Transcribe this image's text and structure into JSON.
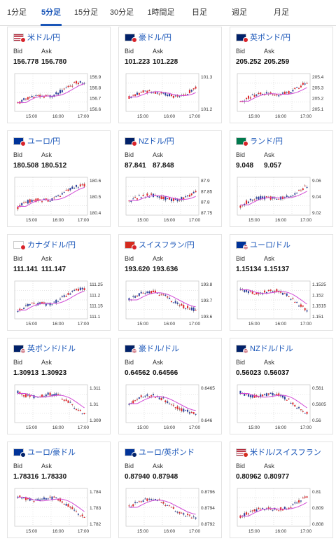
{
  "tabs": [
    "1分足",
    "5分足",
    "15分足",
    "30分足",
    "1時間足",
    "日足",
    "週足",
    "月足"
  ],
  "active_tab": 1,
  "labels": {
    "bid": "Bid",
    "ask": "Ask"
  },
  "x_ticks": [
    "15:00",
    "16:00",
    "17:00"
  ],
  "colors": {
    "up": "#e0262b",
    "down": "#2b3f9e",
    "ma": "#d24bd6",
    "accent": "#1a56b8"
  },
  "cards": [
    {
      "pair": "米ドル/円",
      "flag": "us-jp-flag",
      "bid": "156.778",
      "ask": "156.780",
      "y_ticks": [
        "156.9",
        "156.8",
        "156.7",
        "156.6"
      ],
      "trend": "up1"
    },
    {
      "pair": "豪ドル/円",
      "flag": "au-jp-flag",
      "bid": "101.223",
      "ask": "101.228",
      "y_ticks": [
        "101.3",
        "101.2"
      ],
      "trend": "up2"
    },
    {
      "pair": "英ポンド/円",
      "flag": "gb-jp-flag",
      "bid": "205.252",
      "ask": "205.259",
      "y_ticks": [
        "205.4",
        "205.3",
        "205.2",
        "205.1"
      ],
      "trend": "up3"
    },
    {
      "pair": "ユーロ/円",
      "flag": "eu-jp-flag",
      "bid": "180.508",
      "ask": "180.512",
      "y_ticks": [
        "180.6",
        "180.5",
        "180.4"
      ],
      "trend": "up1"
    },
    {
      "pair": "NZドル/円",
      "flag": "nz-jp-flag",
      "bid": "87.841",
      "ask": "87.848",
      "y_ticks": [
        "87.9",
        "87.85",
        "87.8",
        "87.75"
      ],
      "trend": "up2"
    },
    {
      "pair": "ランド/円",
      "flag": "za-jp-flag",
      "bid": "9.048",
      "ask": "9.057",
      "y_ticks": [
        "9.06",
        "9.04",
        "9.02"
      ],
      "trend": "up3"
    },
    {
      "pair": "カナダドル/円",
      "flag": "ca-jp-flag",
      "bid": "111.141",
      "ask": "111.147",
      "y_ticks": [
        "111.25",
        "111.2",
        "111.15",
        "111.1"
      ],
      "trend": "up1"
    },
    {
      "pair": "スイスフラン/円",
      "flag": "ch-jp-flag",
      "bid": "193.620",
      "ask": "193.636",
      "y_ticks": [
        "193.8",
        "193.7",
        "193.6"
      ],
      "trend": "flat"
    },
    {
      "pair": "ユーロ/ドル",
      "flag": "eu-us-flag",
      "bid": "1.15134",
      "ask": "1.15137",
      "y_ticks": [
        "1.1525",
        "1.152",
        "1.1515",
        "1.151"
      ],
      "trend": "down"
    },
    {
      "pair": "英ポンド/ドル",
      "flag": "gb-us-flag",
      "bid": "1.30913",
      "ask": "1.30923",
      "y_ticks": [
        "1.311",
        "1.31",
        "1.309"
      ],
      "trend": "down"
    },
    {
      "pair": "豪ドル/ドル",
      "flag": "au-us-flag",
      "bid": "0.64562",
      "ask": "0.64566",
      "y_ticks": [
        "0.6465",
        "0.646"
      ],
      "trend": "flat"
    },
    {
      "pair": "NZドル/ドル",
      "flag": "nz-us-flag",
      "bid": "0.56023",
      "ask": "0.56037",
      "y_ticks": [
        "0.561",
        "0.5605",
        "0.56"
      ],
      "trend": "down"
    },
    {
      "pair": "ユーロ/豪ドル",
      "flag": "eu-au-flag",
      "bid": "1.78316",
      "ask": "1.78330",
      "y_ticks": [
        "1.784",
        "1.783",
        "1.782"
      ],
      "trend": "down"
    },
    {
      "pair": "ユーロ/英ポンド",
      "flag": "eu-gb-flag",
      "bid": "0.87940",
      "ask": "0.87948",
      "y_ticks": [
        "0.8796",
        "0.8794",
        "0.8792"
      ],
      "trend": "flat"
    },
    {
      "pair": "米ドル/スイスフラン",
      "flag": "us-ch-flag",
      "bid": "0.80962",
      "ask": "0.80977",
      "y_ticks": [
        "0.81",
        "0.809",
        "0.808"
      ],
      "trend": "up3"
    }
  ]
}
